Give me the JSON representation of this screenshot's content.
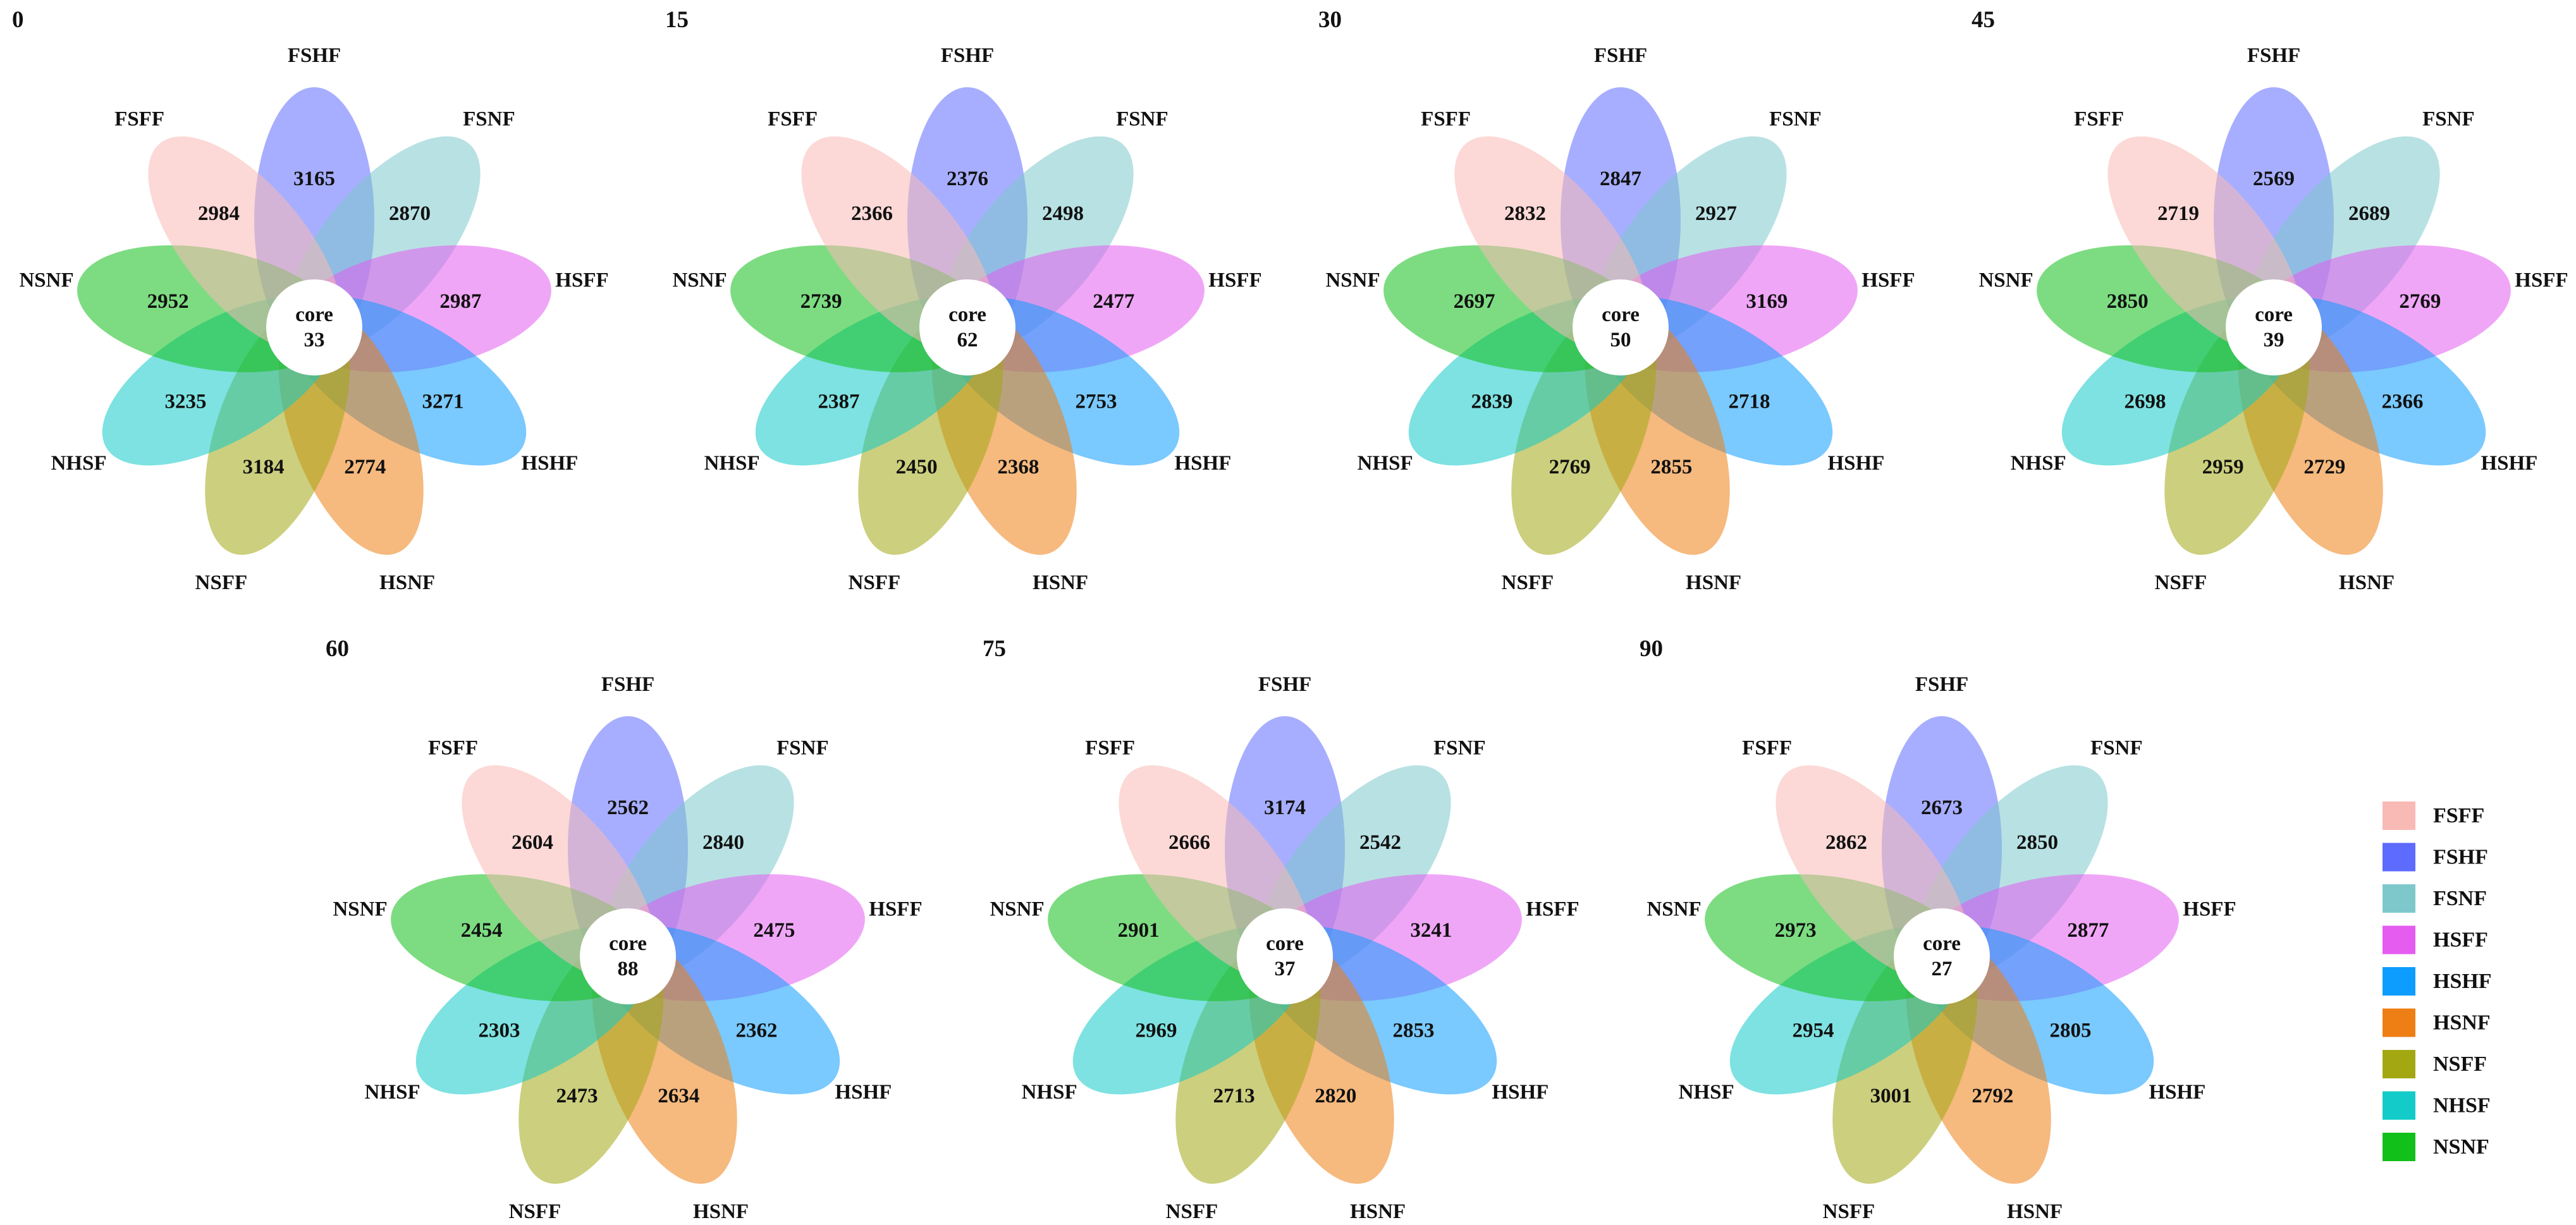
{
  "chart_data": {
    "type": "flower-venn",
    "core_label": "core",
    "sets": [
      "FSFF",
      "FSHF",
      "FSNF",
      "HSFF",
      "HSHF",
      "HSNF",
      "NSFF",
      "NHSF",
      "NSNF"
    ],
    "colors": {
      "FSFF": "#f9b9b4",
      "FSHF": "#5e6bff",
      "FSNF": "#7ec8cc",
      "HSFF": "#e45cf0",
      "HSHF": "#0d9dff",
      "HSNF": "#ee7f14",
      "NSFF": "#a3a812",
      "NHSF": "#13cbc8",
      "NSNF": "#12c01a"
    },
    "petal_order": [
      "FSHF",
      "FSNF",
      "HSFF",
      "HSHF",
      "HSNF",
      "NSFF",
      "NHSF",
      "NSNF",
      "FSFF"
    ],
    "flowers": [
      {
        "title": "0",
        "core": 33,
        "values": {
          "FSHF": 3165,
          "FSNF": 2870,
          "HSFF": 2987,
          "HSHF": 3271,
          "HSNF": 2774,
          "NSFF": 3184,
          "NHSF": 3235,
          "NSNF": 2952,
          "FSFF": 2984
        }
      },
      {
        "title": "15",
        "core": 62,
        "values": {
          "FSHF": 2376,
          "FSNF": 2498,
          "HSFF": 2477,
          "HSHF": 2753,
          "HSNF": 2368,
          "NSFF": 2450,
          "NHSF": 2387,
          "NSNF": 2739,
          "FSFF": 2366
        }
      },
      {
        "title": "30",
        "core": 50,
        "values": {
          "FSHF": 2847,
          "FSNF": 2927,
          "HSFF": 3169,
          "HSHF": 2718,
          "HSNF": 2855,
          "NSFF": 2769,
          "NHSF": 2839,
          "NSNF": 2697,
          "FSFF": 2832
        }
      },
      {
        "title": "45",
        "core": 39,
        "values": {
          "FSHF": 2569,
          "FSNF": 2689,
          "HSFF": 2769,
          "HSHF": 2366,
          "HSNF": 2729,
          "NSFF": 2959,
          "NHSF": 2698,
          "NSNF": 2850,
          "FSFF": 2719
        }
      },
      {
        "title": "60",
        "core": 88,
        "values": {
          "FSHF": 2562,
          "FSNF": 2840,
          "HSFF": 2475,
          "HSHF": 2362,
          "HSNF": 2634,
          "NSFF": 2473,
          "NHSF": 2303,
          "NSNF": 2454,
          "FSFF": 2604
        }
      },
      {
        "title": "75",
        "core": 37,
        "values": {
          "FSHF": 3174,
          "FSNF": 2542,
          "HSFF": 3241,
          "HSHF": 2853,
          "HSNF": 2820,
          "NSFF": 2713,
          "NHSF": 2969,
          "NSNF": 2901,
          "FSFF": 2666
        }
      },
      {
        "title": "90",
        "core": 27,
        "values": {
          "FSHF": 2673,
          "FSNF": 2850,
          "HSFF": 2877,
          "HSHF": 2805,
          "HSNF": 2792,
          "NSFF": 3001,
          "NHSF": 2954,
          "NSNF": 2973,
          "FSFF": 2862
        }
      }
    ],
    "legend": [
      "FSFF",
      "FSHF",
      "FSNF",
      "HSFF",
      "HSHF",
      "HSNF",
      "NSFF",
      "NHSF",
      "NSNF"
    ],
    "legend_placement": "right"
  }
}
